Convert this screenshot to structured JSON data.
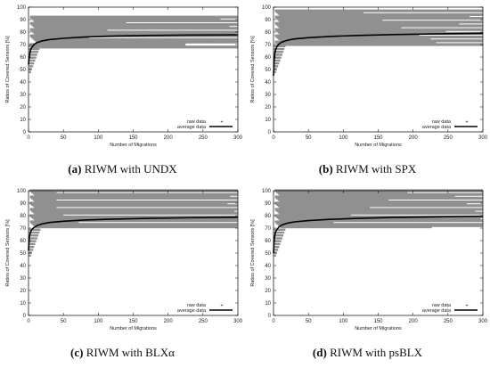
{
  "chart_data": [
    {
      "type": "line",
      "caption_letter": "(a)",
      "caption_text": "RIWM with UNDX",
      "xlabel": "Number of Migrations",
      "ylabel": "Ratios of Covered Sensors [%]",
      "xlim": [
        0,
        300
      ],
      "ylim": [
        0,
        100
      ],
      "xticks": [
        0,
        50,
        100,
        150,
        200,
        250,
        300
      ],
      "yticks": [
        0,
        10,
        20,
        30,
        40,
        50,
        60,
        70,
        80,
        90,
        100
      ],
      "legend_position": "bottom-right",
      "series": [
        {
          "name": "raw data",
          "color": "#909090",
          "note_levels": [
            92,
            91,
            90,
            89,
            88,
            87,
            86,
            85,
            84,
            83,
            82,
            81,
            80,
            79,
            78,
            77,
            76,
            75,
            74,
            72,
            70,
            68
          ]
        },
        {
          "name": "average data",
          "color": "#000000",
          "x": [
            0,
            1,
            2,
            3,
            5,
            8,
            12,
            20,
            30,
            50,
            80,
            120,
            170,
            230,
            300
          ],
          "values": [
            54,
            60,
            63,
            66,
            68,
            70,
            71.5,
            73,
            74,
            75,
            76,
            76.8,
            77.3,
            77.6,
            77.8
          ]
        }
      ]
    },
    {
      "type": "line",
      "caption_letter": "(b)",
      "caption_text": "RIWM with SPX",
      "xlabel": "Number of Migrations",
      "ylabel": "Ratios of Covered Sensors [%]",
      "xlim": [
        0,
        300
      ],
      "ylim": [
        0,
        100
      ],
      "xticks": [
        0,
        50,
        100,
        150,
        200,
        250,
        300
      ],
      "yticks": [
        0,
        10,
        20,
        30,
        40,
        50,
        60,
        70,
        80,
        90,
        100
      ],
      "legend_position": "bottom-right",
      "series": [
        {
          "name": "raw data",
          "color": "#909090",
          "note_levels": [
            97,
            96,
            95,
            94,
            93,
            92,
            91,
            90,
            89,
            88,
            87,
            86,
            85,
            84,
            83,
            82,
            81,
            80,
            79,
            78,
            77,
            76,
            75,
            74,
            73,
            72,
            71,
            70
          ]
        },
        {
          "name": "average data",
          "color": "#000000",
          "x": [
            0,
            1,
            2,
            3,
            5,
            8,
            12,
            20,
            30,
            50,
            80,
            120,
            170,
            230,
            300
          ],
          "values": [
            45,
            58,
            63,
            66,
            68.5,
            70.5,
            72,
            73.5,
            74.5,
            75.5,
            76.5,
            77.3,
            78,
            78.5,
            79
          ]
        }
      ]
    },
    {
      "type": "line",
      "caption_letter": "(c)",
      "caption_text": "RIWM with BLXα",
      "xlabel": "Number of Migrations",
      "ylabel": "Ratios of Covered Sensors [%]",
      "xlim": [
        0,
        300
      ],
      "ylim": [
        0,
        100
      ],
      "xticks": [
        0,
        50,
        100,
        150,
        200,
        250,
        300
      ],
      "yticks": [
        0,
        10,
        20,
        30,
        40,
        50,
        60,
        70,
        80,
        90,
        100
      ],
      "legend_position": "bottom-right",
      "series": [
        {
          "name": "raw data",
          "color": "#909090",
          "note_levels": [
            100,
            99,
            98,
            97,
            96,
            95,
            94,
            93,
            92,
            91,
            90,
            89,
            88,
            87,
            86,
            85,
            84,
            83,
            82,
            81,
            80,
            79,
            78,
            77,
            76,
            75,
            74,
            73,
            72,
            71
          ]
        },
        {
          "name": "average data",
          "color": "#000000",
          "x": [
            0,
            1,
            2,
            3,
            5,
            8,
            12,
            20,
            30,
            50,
            80,
            120,
            170,
            230,
            300
          ],
          "values": [
            52,
            62,
            65,
            67,
            69,
            70.5,
            72,
            73.5,
            74.5,
            75.5,
            76.5,
            77.2,
            77.8,
            78.3,
            78.7
          ]
        }
      ]
    },
    {
      "type": "line",
      "caption_letter": "(d)",
      "caption_text": "RIWM with psBLX",
      "xlabel": "Number of Migrations",
      "ylabel": "Ratios of Covered Sensors [%]",
      "xlim": [
        0,
        300
      ],
      "ylim": [
        0,
        100
      ],
      "xticks": [
        0,
        50,
        100,
        150,
        200,
        250,
        300
      ],
      "yticks": [
        0,
        10,
        20,
        30,
        40,
        50,
        60,
        70,
        80,
        90,
        100
      ],
      "legend_position": "bottom-right",
      "series": [
        {
          "name": "raw data",
          "color": "#909090",
          "note_levels": [
            100,
            99,
            98,
            97,
            96,
            95,
            94,
            93,
            92,
            91,
            90,
            89,
            88,
            87,
            86,
            85,
            84,
            83,
            82,
            81,
            80,
            79,
            78,
            77,
            76,
            75,
            74,
            73,
            72,
            71
          ]
        },
        {
          "name": "average data",
          "color": "#000000",
          "x": [
            0,
            1,
            2,
            3,
            5,
            8,
            12,
            20,
            30,
            50,
            80,
            120,
            170,
            230,
            300
          ],
          "values": [
            50,
            61,
            64.5,
            67,
            69,
            71,
            72.5,
            74,
            75,
            76,
            77,
            77.8,
            78.5,
            79,
            79.5
          ]
        }
      ]
    }
  ]
}
